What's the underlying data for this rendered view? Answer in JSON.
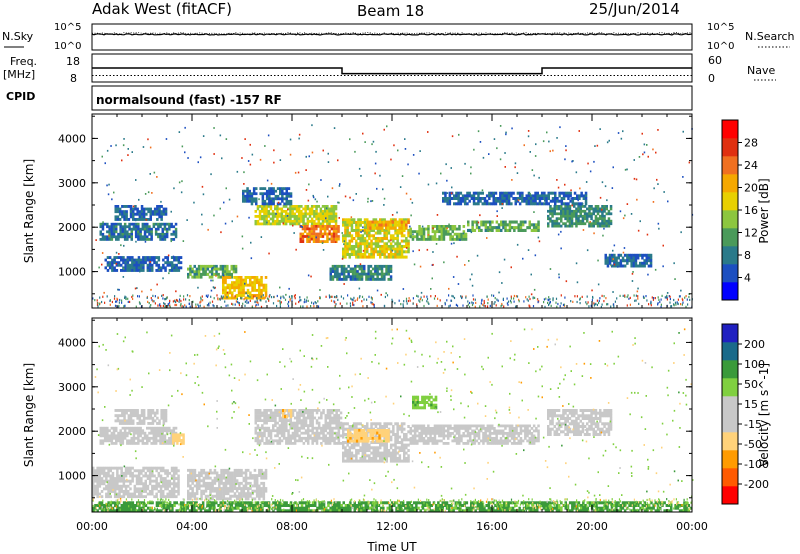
{
  "header": {
    "station": "Adak West (fitACF)",
    "beam": "Beam 18",
    "date": "25/Jun/2014"
  },
  "status_panels": {
    "nsky_label": "N.Sky",
    "nsearch_label": "N.Search",
    "freq_label": "Freq.",
    "freq_unit": "[MHz]",
    "nave_label": "Nave",
    "cpid_label": "CPID",
    "program": "normalsound (fast) -157 RF",
    "noise_ticks_left": [
      "10^5",
      "10^0"
    ],
    "noise_ticks_right": [
      "10^5",
      "10^0"
    ],
    "freq_ticks": [
      "18",
      "8"
    ],
    "nave_ticks": [
      "60",
      "0"
    ]
  },
  "chart_data": [
    {
      "type": "line",
      "name": "noise",
      "x": [
        0,
        24
      ],
      "ylim_log10": [
        0,
        5
      ],
      "nsky_level_log10": 3.0,
      "nsearch_level_log10": 3.2
    },
    {
      "type": "line",
      "name": "frequency",
      "ylim": [
        8,
        18
      ],
      "freq_segments": [
        {
          "t0": 0,
          "t1": 10,
          "value": 13
        },
        {
          "t0": 10,
          "t1": 18,
          "value": 11
        },
        {
          "t0": 18,
          "t1": 24,
          "value": 13
        }
      ],
      "nave_ylim": [
        0,
        60
      ],
      "nave_level": 14
    },
    {
      "type": "heatmap",
      "name": "power",
      "xlim": [
        0,
        24
      ],
      "ylim": [
        180,
        4550
      ],
      "xlabel": "",
      "ylabel": "Slant Range [km]",
      "y_ticks": [
        1000,
        2000,
        3000,
        4000
      ],
      "colorbar_label": "Power [dB]",
      "colorbar_ticks": [
        "28",
        "24",
        "20",
        "16",
        "12",
        "8",
        "4"
      ],
      "colorbar_colors": [
        "#0000ff",
        "#1c4fc0",
        "#2a7a8a",
        "#4a9a5a",
        "#8cc63f",
        "#e8d000",
        "#f5a800",
        "#f07020",
        "#e03010",
        "#ff0000"
      ],
      "regions": [
        {
          "t0": 0.9,
          "t1": 3.0,
          "r0": 2150,
          "r1": 2500,
          "db": 6
        },
        {
          "t0": 0.3,
          "t1": 3.4,
          "r0": 1700,
          "r1": 2100,
          "db": 7
        },
        {
          "t0": 0.5,
          "t1": 3.6,
          "r0": 1000,
          "r1": 1350,
          "db": 6
        },
        {
          "t0": 3.8,
          "t1": 5.8,
          "r0": 850,
          "r1": 1150,
          "db": 11
        },
        {
          "t0": 5.2,
          "t1": 7.0,
          "r0": 380,
          "r1": 900,
          "db": 18
        },
        {
          "t0": 6.5,
          "t1": 9.8,
          "r0": 2050,
          "r1": 2500,
          "db": 15
        },
        {
          "t0": 8.3,
          "t1": 9.9,
          "r0": 1650,
          "r1": 2050,
          "db": 22
        },
        {
          "t0": 10.0,
          "t1": 12.7,
          "r0": 1300,
          "r1": 2200,
          "db": 16
        },
        {
          "t0": 11.0,
          "t1": 12.7,
          "r0": 1950,
          "r1": 2150,
          "db": 20
        },
        {
          "t0": 12.7,
          "t1": 15.0,
          "r0": 1700,
          "r1": 2050,
          "db": 12
        },
        {
          "t0": 15.0,
          "t1": 17.9,
          "r0": 1900,
          "r1": 2150,
          "db": 11
        },
        {
          "t0": 18.2,
          "t1": 20.8,
          "r0": 2000,
          "r1": 2500,
          "db": 9
        },
        {
          "t0": 20.5,
          "t1": 22.4,
          "r0": 1100,
          "r1": 1400,
          "db": 6
        },
        {
          "t0": 14.0,
          "t1": 19.8,
          "r0": 2500,
          "r1": 2800,
          "db": 6
        },
        {
          "t0": 9.5,
          "t1": 12.0,
          "r0": 800,
          "r1": 1150,
          "db": 8
        },
        {
          "t0": 6.0,
          "t1": 8.0,
          "r0": 2500,
          "r1": 2900,
          "db": 6
        }
      ]
    },
    {
      "type": "heatmap",
      "name": "velocity",
      "xlim": [
        0,
        24
      ],
      "ylim": [
        180,
        4550
      ],
      "xlabel": "Time UT",
      "ylabel": "Slant Range [km]",
      "x_ticks": [
        "00:00",
        "04:00",
        "08:00",
        "12:00",
        "16:00",
        "20:00",
        "00:00"
      ],
      "y_ticks": [
        1000,
        2000,
        3000,
        4000
      ],
      "colorbar_label": "Velocity [m s^-1]",
      "colorbar_ticks": [
        "200",
        "100",
        "50",
        "15",
        "-15",
        "-50",
        "-100",
        "-200"
      ],
      "colorbar_colors": [
        "#ff0000",
        "#ff5a00",
        "#ff9b00",
        "#ffd27a",
        "#c8c8c8",
        "#c8c8c8",
        "#80d040",
        "#3a9a3a",
        "#1a6a8a",
        "#2020c0"
      ],
      "regions": [
        {
          "t0": 0.0,
          "t1": 3.5,
          "r0": 500,
          "r1": 1200,
          "v": 0
        },
        {
          "t0": 0.9,
          "t1": 3.0,
          "r0": 2150,
          "r1": 2500,
          "v": 0
        },
        {
          "t0": 0.3,
          "t1": 3.4,
          "r0": 1700,
          "r1": 2100,
          "v": 0
        },
        {
          "t0": 3.8,
          "t1": 7.0,
          "r0": 450,
          "r1": 1150,
          "v": 0
        },
        {
          "t0": 6.5,
          "t1": 10.0,
          "r0": 1700,
          "r1": 2500,
          "v": 0
        },
        {
          "t0": 10.0,
          "t1": 12.7,
          "r0": 1300,
          "r1": 2200,
          "v": 0
        },
        {
          "t0": 10.2,
          "t1": 11.9,
          "r0": 1750,
          "r1": 2050,
          "v": -40
        },
        {
          "t0": 12.7,
          "t1": 17.9,
          "r0": 1700,
          "r1": 2150,
          "v": 0
        },
        {
          "t0": 18.2,
          "t1": 20.8,
          "r0": 1900,
          "r1": 2500,
          "v": 0
        },
        {
          "t0": 3.2,
          "t1": 3.7,
          "r0": 1700,
          "r1": 1950,
          "v": -40
        },
        {
          "t0": 7.6,
          "t1": 8.0,
          "r0": 2300,
          "r1": 2500,
          "v": -40
        },
        {
          "t0": 12.8,
          "t1": 13.8,
          "r0": 2500,
          "r1": 2800,
          "v": 40
        },
        {
          "t0": 0.0,
          "t1": 24.0,
          "r0": 180,
          "r1": 420,
          "v": 60
        }
      ]
    }
  ]
}
